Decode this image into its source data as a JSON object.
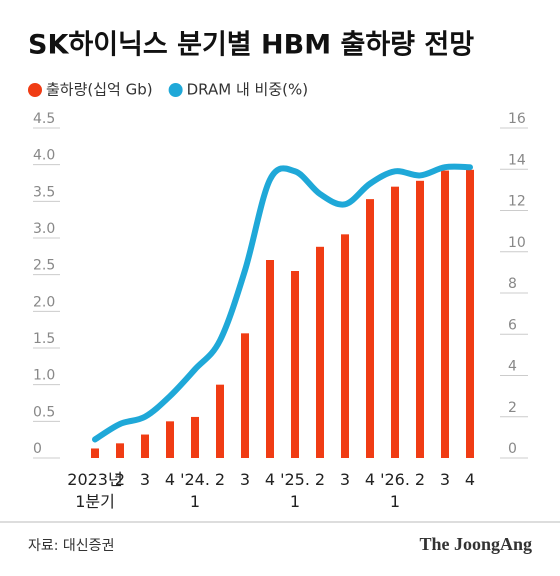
{
  "chart_data": {
    "type": "bar",
    "title": "SK하이닉스 분기별 HBM 출하량 전망",
    "categories": [
      "2023년\n1분기",
      "2",
      "3",
      "4",
      "'24.\n1",
      "2",
      "3",
      "4",
      "'25.\n1",
      "2",
      "3",
      "4",
      "'26.\n1",
      "2",
      "3",
      "4"
    ],
    "series": [
      {
        "name": "출하량(십억 Gb)",
        "type": "bar",
        "color": "#f03c14",
        "values": [
          0.13,
          0.2,
          0.32,
          0.5,
          0.56,
          1.0,
          1.7,
          2.7,
          2.55,
          2.88,
          3.05,
          3.53,
          3.7,
          3.78,
          3.92,
          3.93
        ]
      },
      {
        "name": "DRAM 내 비중(%)",
        "type": "line",
        "axis": "y2",
        "color": "#1fa8d8",
        "values": [
          0.9,
          1.65,
          2.0,
          3.0,
          4.3,
          5.7,
          9.1,
          13.5,
          13.9,
          12.8,
          12.3,
          13.3,
          13.9,
          13.7,
          14.1,
          14.1
        ]
      }
    ],
    "ylim": [
      0,
      4.5
    ],
    "yticks": [
      0,
      0.5,
      {
        "value": 1,
        "label": "1.0"
      },
      1.5,
      {
        "value": 2,
        "label": "2.0"
      },
      2.5,
      {
        "value": 3,
        "label": "3.0"
      },
      3.5,
      {
        "value": 4,
        "label": "4.0"
      },
      4.5
    ],
    "y2lim": [
      0,
      16
    ],
    "y2ticks": [
      0,
      2,
      4,
      6,
      8,
      10,
      12,
      14,
      16
    ],
    "source": "자료: 대신증권",
    "logo": "The JoongAng"
  }
}
